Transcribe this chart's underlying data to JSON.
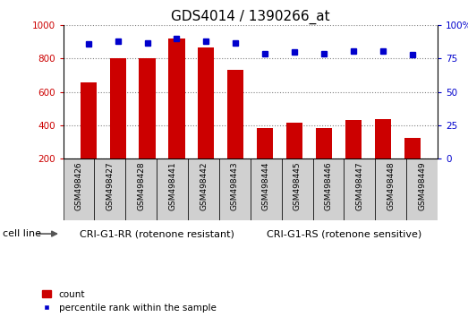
{
  "title": "GDS4014 / 1390266_at",
  "categories": [
    "GSM498426",
    "GSM498427",
    "GSM498428",
    "GSM498441",
    "GSM498442",
    "GSM498443",
    "GSM498444",
    "GSM498445",
    "GSM498446",
    "GSM498447",
    "GSM498448",
    "GSM498449"
  ],
  "counts": [
    660,
    800,
    805,
    920,
    865,
    730,
    385,
    415,
    385,
    430,
    435,
    325
  ],
  "percentile_ranks": [
    86,
    88,
    87,
    90,
    88,
    87,
    79,
    80,
    79,
    81,
    81,
    78
  ],
  "bar_color": "#cc0000",
  "dot_color": "#0000cc",
  "ylim_left": [
    200,
    1000
  ],
  "ylim_right": [
    0,
    100
  ],
  "yticks_left": [
    200,
    400,
    600,
    800,
    1000
  ],
  "yticks_right": [
    0,
    25,
    50,
    75,
    100
  ],
  "group1_label": "CRI-G1-RR (rotenone resistant)",
  "group2_label": "CRI-G1-RS (rotenone sensitive)",
  "group1_count": 6,
  "group2_count": 6,
  "cell_line_label": "cell line",
  "legend_count_label": "count",
  "legend_pct_label": "percentile rank within the sample",
  "group_color": "#77ee77",
  "tick_area_color": "#d0d0d0",
  "background_color": "#ffffff",
  "title_fontsize": 11,
  "tick_fontsize": 7.5,
  "axis_fontsize": 8
}
